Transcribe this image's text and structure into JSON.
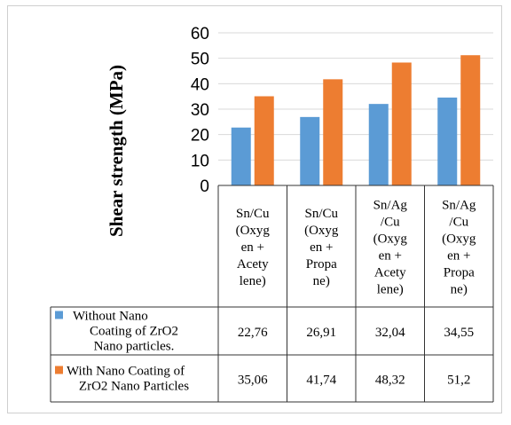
{
  "chart_data": {
    "type": "bar",
    "ylabel": "Shear strength (MPa)",
    "ylim": [
      0,
      60
    ],
    "y_ticks": [
      "0",
      "10",
      "20",
      "30",
      "40",
      "50",
      "60"
    ],
    "grid": true,
    "legend": "data-table",
    "categories": [
      [
        "Sn/Cu",
        "(Oxyg",
        "en +",
        "Acety",
        "lene)"
      ],
      [
        "Sn/Cu",
        "(Oxyg",
        "en +",
        "Propa",
        "ne)"
      ],
      [
        "Sn/Ag",
        "/Cu",
        "(Oxyg",
        "en +",
        "Acety",
        "lene)"
      ],
      [
        "Sn/Ag",
        "/Cu",
        "(Oxyg",
        "en +",
        "Propa",
        "ne)"
      ]
    ],
    "series": [
      {
        "name_lines": [
          "Without Nano",
          "Coating of ZrO2",
          "Nano particles."
        ],
        "color": "#5b9bd5",
        "values": [
          22.76,
          26.91,
          32.04,
          34.55
        ],
        "value_labels": [
          "22,76",
          "26,91",
          "32,04",
          "34,55"
        ]
      },
      {
        "name_lines": [
          "With Nano Coating of",
          "ZrO2 Nano Particles"
        ],
        "color": "#ed7d31",
        "values": [
          35.06,
          41.74,
          48.32,
          51.2
        ],
        "value_labels": [
          "35,06",
          "41,74",
          "48,32",
          "51,2"
        ]
      }
    ]
  }
}
